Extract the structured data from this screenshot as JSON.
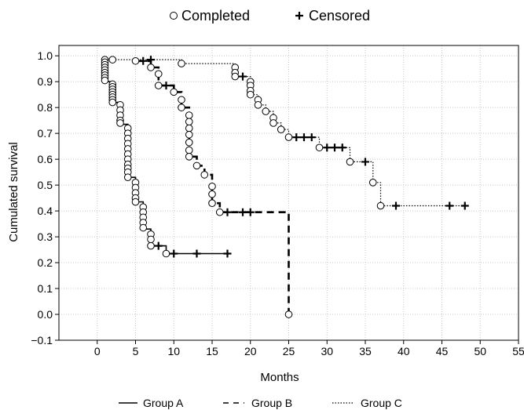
{
  "chart_data": {
    "type": "line",
    "title": "",
    "xlabel": "Months",
    "ylabel": "Cumulated survival",
    "xlim": [
      -5,
      55
    ],
    "ylim": [
      -0.1,
      1.0
    ],
    "grid": true,
    "x_ticks": [
      "0",
      "5",
      "10",
      "15",
      "20",
      "25",
      "30",
      "35",
      "40",
      "45",
      "50",
      "55"
    ],
    "y_ticks": [
      "−0.1",
      "0.0",
      "0.1",
      "0.2",
      "0.3",
      "0.4",
      "0.5",
      "0.6",
      "0.7",
      "0.8",
      "0.9",
      "1.0"
    ],
    "marker_legend": {
      "position": "top",
      "completed": "Completed",
      "censored": "Censored"
    },
    "legend": {
      "position": "bottom",
      "entries": [
        "Group A",
        "Group B",
        "Group C"
      ]
    },
    "series": [
      {
        "name": "Group A",
        "style": "solid",
        "steps": [
          [
            1,
            0.98
          ],
          [
            1,
            0.9
          ],
          [
            2,
            0.9
          ],
          [
            2,
            0.82
          ],
          [
            3,
            0.82
          ],
          [
            3,
            0.735
          ],
          [
            4,
            0.735
          ],
          [
            4,
            0.53
          ],
          [
            5,
            0.53
          ],
          [
            5,
            0.435
          ],
          [
            6,
            0.435
          ],
          [
            6,
            0.33
          ],
          [
            7,
            0.33
          ],
          [
            7,
            0.265
          ],
          [
            9,
            0.265
          ],
          [
            9,
            0.235
          ],
          [
            17,
            0.235
          ]
        ],
        "completed": [
          [
            1,
            0.985
          ],
          [
            1,
            0.975
          ],
          [
            1,
            0.965
          ],
          [
            1,
            0.955
          ],
          [
            1,
            0.945
          ],
          [
            1,
            0.935
          ],
          [
            1,
            0.925
          ],
          [
            1,
            0.915
          ],
          [
            1,
            0.905
          ],
          [
            2,
            0.89
          ],
          [
            2,
            0.88
          ],
          [
            2,
            0.87
          ],
          [
            2,
            0.86
          ],
          [
            2,
            0.85
          ],
          [
            2,
            0.84
          ],
          [
            2,
            0.83
          ],
          [
            2,
            0.82
          ],
          [
            3,
            0.81
          ],
          [
            3,
            0.79
          ],
          [
            3,
            0.77
          ],
          [
            3,
            0.75
          ],
          [
            3,
            0.74
          ],
          [
            4,
            0.72
          ],
          [
            4,
            0.7
          ],
          [
            4,
            0.68
          ],
          [
            4,
            0.66
          ],
          [
            4,
            0.64
          ],
          [
            4,
            0.62
          ],
          [
            4,
            0.6
          ],
          [
            4,
            0.58
          ],
          [
            4,
            0.565
          ],
          [
            4,
            0.55
          ],
          [
            4,
            0.53
          ],
          [
            5,
            0.51
          ],
          [
            5,
            0.49
          ],
          [
            5,
            0.47
          ],
          [
            5,
            0.45
          ],
          [
            5,
            0.435
          ],
          [
            6,
            0.415
          ],
          [
            6,
            0.395
          ],
          [
            6,
            0.375
          ],
          [
            6,
            0.355
          ],
          [
            6,
            0.335
          ],
          [
            7,
            0.31
          ],
          [
            7,
            0.29
          ],
          [
            7,
            0.265
          ],
          [
            9,
            0.235
          ]
        ],
        "censored": [
          [
            8,
            0.265
          ],
          [
            10,
            0.235
          ],
          [
            13,
            0.235
          ],
          [
            17,
            0.235
          ]
        ]
      },
      {
        "name": "Group B",
        "style": "dashed",
        "steps": [
          [
            5,
            0.98
          ],
          [
            7,
            0.98
          ],
          [
            7,
            0.955
          ],
          [
            8,
            0.955
          ],
          [
            8,
            0.885
          ],
          [
            10,
            0.885
          ],
          [
            10,
            0.86
          ],
          [
            11,
            0.86
          ],
          [
            11,
            0.8
          ],
          [
            12,
            0.8
          ],
          [
            12,
            0.61
          ],
          [
            13,
            0.61
          ],
          [
            13,
            0.575
          ],
          [
            14,
            0.575
          ],
          [
            14,
            0.54
          ],
          [
            15,
            0.54
          ],
          [
            15,
            0.43
          ],
          [
            16,
            0.43
          ],
          [
            16,
            0.395
          ],
          [
            25,
            0.395
          ],
          [
            25,
            0.0
          ]
        ],
        "completed": [
          [
            5,
            0.98
          ],
          [
            7,
            0.955
          ],
          [
            8,
            0.93
          ],
          [
            8,
            0.885
          ],
          [
            10,
            0.86
          ],
          [
            11,
            0.83
          ],
          [
            11,
            0.8
          ],
          [
            12,
            0.77
          ],
          [
            12,
            0.745
          ],
          [
            12,
            0.72
          ],
          [
            12,
            0.695
          ],
          [
            12,
            0.665
          ],
          [
            12,
            0.635
          ],
          [
            12,
            0.61
          ],
          [
            13,
            0.575
          ],
          [
            14,
            0.54
          ],
          [
            15,
            0.495
          ],
          [
            15,
            0.465
          ],
          [
            15,
            0.43
          ],
          [
            16,
            0.395
          ],
          [
            25,
            0.0
          ]
        ],
        "censored": [
          [
            6,
            0.98
          ],
          [
            7,
            0.985
          ],
          [
            9,
            0.885
          ],
          [
            17,
            0.395
          ],
          [
            19,
            0.395
          ],
          [
            20,
            0.395
          ]
        ]
      },
      {
        "name": "Group C",
        "style": "dotted",
        "steps": [
          [
            2,
            0.985
          ],
          [
            11,
            0.985
          ],
          [
            11,
            0.97
          ],
          [
            18,
            0.97
          ],
          [
            18,
            0.92
          ],
          [
            20,
            0.92
          ],
          [
            20,
            0.85
          ],
          [
            21,
            0.85
          ],
          [
            21,
            0.81
          ],
          [
            22,
            0.81
          ],
          [
            22,
            0.785
          ],
          [
            23,
            0.785
          ],
          [
            23,
            0.74
          ],
          [
            24,
            0.74
          ],
          [
            24,
            0.715
          ],
          [
            25,
            0.715
          ],
          [
            25,
            0.685
          ],
          [
            29,
            0.685
          ],
          [
            29,
            0.645
          ],
          [
            33,
            0.645
          ],
          [
            33,
            0.59
          ],
          [
            36,
            0.59
          ],
          [
            36,
            0.51
          ],
          [
            37,
            0.51
          ],
          [
            37,
            0.42
          ],
          [
            48,
            0.42
          ]
        ],
        "completed": [
          [
            2,
            0.985
          ],
          [
            11,
            0.97
          ],
          [
            18,
            0.955
          ],
          [
            18,
            0.935
          ],
          [
            18,
            0.92
          ],
          [
            20,
            0.9
          ],
          [
            20,
            0.885
          ],
          [
            20,
            0.865
          ],
          [
            20,
            0.85
          ],
          [
            21,
            0.83
          ],
          [
            21,
            0.81
          ],
          [
            22,
            0.785
          ],
          [
            23,
            0.76
          ],
          [
            23,
            0.74
          ],
          [
            24,
            0.715
          ],
          [
            25,
            0.685
          ],
          [
            29,
            0.645
          ],
          [
            33,
            0.59
          ],
          [
            36,
            0.51
          ],
          [
            37,
            0.42
          ]
        ],
        "censored": [
          [
            19,
            0.92
          ],
          [
            26,
            0.685
          ],
          [
            27,
            0.685
          ],
          [
            28,
            0.685
          ],
          [
            30,
            0.645
          ],
          [
            31,
            0.645
          ],
          [
            32,
            0.645
          ],
          [
            35,
            0.59
          ],
          [
            39,
            0.42
          ],
          [
            46,
            0.42
          ],
          [
            48,
            0.42
          ]
        ]
      }
    ]
  }
}
